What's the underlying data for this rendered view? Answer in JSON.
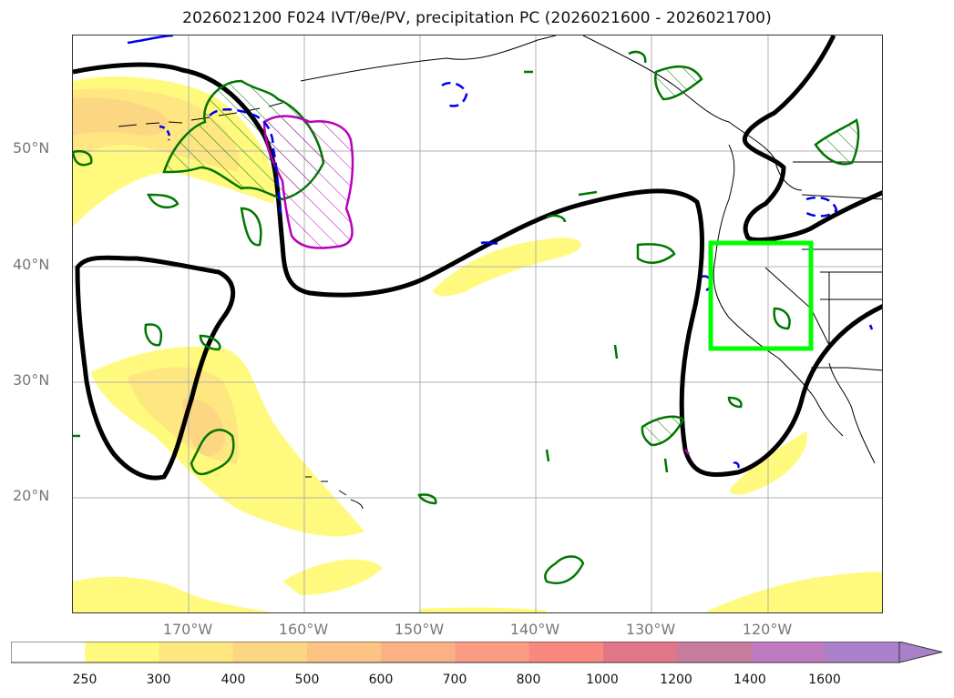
{
  "title": "2026021200 F024 IVT/θe/PV, precipitation PC (2026021600 - 2026021700)",
  "map": {
    "lat_labels": [
      "50°N",
      "40°N",
      "30°N",
      "20°N"
    ],
    "lon_labels": [
      "170°W",
      "160°W",
      "150°W",
      "140°W",
      "130°W",
      "120°W"
    ],
    "extent": {
      "lon_min": -180,
      "lon_max": -110,
      "lat_min": 10,
      "lat_max": 60
    },
    "highlight_box": {
      "lon_min": -125.5,
      "lon_max": -116.5,
      "lat_min": 33,
      "lat_max": 42,
      "color": "#00ff00"
    }
  },
  "colorbar": {
    "ticks": [
      "250",
      "300",
      "400",
      "500",
      "600",
      "700",
      "800",
      "1000",
      "1200",
      "1400",
      "1600"
    ],
    "colors": [
      "#ffffff",
      "#fffa7d",
      "#fee780",
      "#fdd683",
      "#fdc385",
      "#fcb086",
      "#fa9c84",
      "#f98880",
      "#e1768a",
      "#c67c9c",
      "#bf7bbf",
      "#a881c9"
    ],
    "extend": "max"
  },
  "colors": {
    "contour_black": "#000000",
    "contour_green": "#007700",
    "contour_blue": "#0000ee",
    "contour_magenta": "#bb00bb",
    "grid": "#b0b0b0",
    "coast": "#000000"
  }
}
